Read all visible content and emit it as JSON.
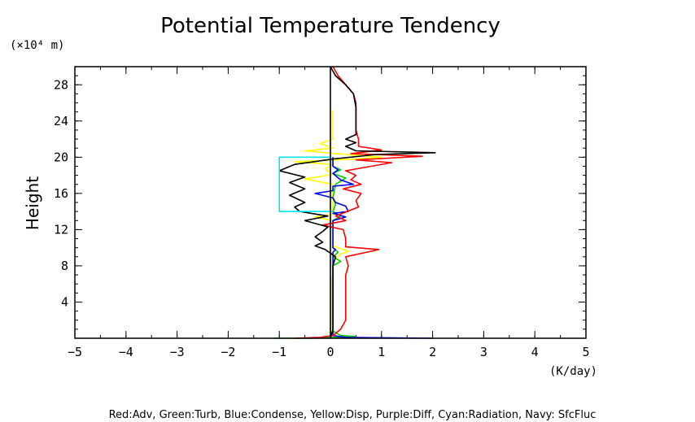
{
  "chart_data": {
    "type": "line",
    "title": "Potential Temperature Tendency",
    "xlabel": "(K/day)",
    "ylabel": "Height",
    "yunit": "(×10⁴ m)",
    "xlim": [
      -5,
      5
    ],
    "ylim": [
      0,
      30
    ],
    "xticks": [
      -5,
      -4,
      -3,
      -2,
      -1,
      0,
      1,
      2,
      3,
      4,
      5
    ],
    "yticks": [
      4,
      8,
      12,
      16,
      20,
      24,
      28
    ],
    "xminor_step": 0.5,
    "yminor_step": 1,
    "grid": false,
    "legend_text": "Red:Adv, Green:Turb, Blue:Condense, Yellow:Disp, Purple:Diff, Cyan:Radiation, Navy: SfcFluc",
    "series": [
      {
        "color": "#ffff00",
        "points": [
          [
            0.0,
            0.0
          ],
          [
            0.02,
            2
          ],
          [
            0.02,
            4
          ],
          [
            0.02,
            6
          ],
          [
            0.05,
            7.5
          ],
          [
            0.05,
            8.5
          ],
          [
            0.2,
            9.3
          ],
          [
            0.35,
            9.6
          ],
          [
            0.2,
            9.9
          ],
          [
            0.05,
            10.2
          ],
          [
            0.05,
            11
          ],
          [
            0.05,
            12
          ],
          [
            0.05,
            13
          ],
          [
            -0.3,
            13.4
          ],
          [
            0.05,
            13.7
          ],
          [
            0.05,
            14.2
          ],
          [
            0.05,
            16
          ],
          [
            0.05,
            17
          ],
          [
            -0.5,
            17.6
          ],
          [
            0.05,
            18.1
          ],
          [
            -0.1,
            18.7
          ],
          [
            0.05,
            19.2
          ],
          [
            -0.7,
            19.5
          ],
          [
            0.5,
            19.8
          ],
          [
            1.0,
            20.0
          ],
          [
            0.3,
            20.3
          ],
          [
            -0.5,
            20.7
          ],
          [
            0.05,
            21.0
          ],
          [
            -0.2,
            21.5
          ],
          [
            0.05,
            22.0
          ],
          [
            0.05,
            23.5
          ],
          [
            0.05,
            25.2
          ]
        ]
      },
      {
        "color": "#00cc00",
        "points": [
          [
            -1.1,
            0.0
          ],
          [
            -0.4,
            0.0
          ],
          [
            0.05,
            0.1
          ],
          [
            0.5,
            0.2
          ],
          [
            0.2,
            0.3
          ],
          [
            0.05,
            0.8
          ],
          [
            0.05,
            2
          ],
          [
            0.05,
            4
          ],
          [
            0.05,
            6
          ],
          [
            0.05,
            8
          ],
          [
            0.2,
            8.5
          ],
          [
            0.05,
            9.0
          ],
          [
            0.15,
            9.5
          ],
          [
            0.05,
            10.0
          ],
          [
            0.05,
            12
          ],
          [
            0.05,
            13
          ],
          [
            0.2,
            13.5
          ],
          [
            0.05,
            14.0
          ],
          [
            0.1,
            14.8
          ],
          [
            0.05,
            15.5
          ],
          [
            0.1,
            17
          ],
          [
            0.3,
            17.7
          ],
          [
            0.05,
            18.2
          ],
          [
            0.2,
            18.6
          ],
          [
            0.05,
            19.0
          ],
          [
            0.05,
            20
          ]
        ]
      },
      {
        "color": "#0000ff",
        "points": [
          [
            2.0,
            0.0
          ],
          [
            0.3,
            0.1
          ],
          [
            0.05,
            0.3
          ],
          [
            0.05,
            2
          ],
          [
            0.05,
            5
          ],
          [
            0.05,
            8
          ],
          [
            0.05,
            9.5
          ],
          [
            0.1,
            9.8
          ],
          [
            0.05,
            10
          ],
          [
            0.05,
            12
          ],
          [
            0.05,
            13.0
          ],
          [
            0.3,
            13.4
          ],
          [
            0.05,
            13.8
          ],
          [
            0.35,
            14.0
          ],
          [
            0.3,
            14.6
          ],
          [
            0.1,
            15.0
          ],
          [
            0.05,
            15.5
          ],
          [
            -0.3,
            16.0
          ],
          [
            0.05,
            16.3
          ],
          [
            0.05,
            16.8
          ],
          [
            0.45,
            17.0
          ],
          [
            0.2,
            17.5
          ],
          [
            0.05,
            18.2
          ],
          [
            0.15,
            18.6
          ],
          [
            0.05,
            19.0
          ],
          [
            0.05,
            20.0
          ]
        ]
      },
      {
        "color": "#ff0000",
        "points": [
          [
            -0.7,
            0.0
          ],
          [
            -0.2,
            0.1
          ],
          [
            0.05,
            0.3
          ],
          [
            0.2,
            1
          ],
          [
            0.3,
            2
          ],
          [
            0.3,
            3
          ],
          [
            0.3,
            4
          ],
          [
            0.3,
            5
          ],
          [
            0.3,
            6
          ],
          [
            0.3,
            7
          ],
          [
            0.35,
            8
          ],
          [
            0.3,
            9
          ],
          [
            0.95,
            9.8
          ],
          [
            0.3,
            10.1
          ],
          [
            0.3,
            11
          ],
          [
            0.25,
            12.0
          ],
          [
            -0.15,
            12.5
          ],
          [
            0.3,
            13
          ],
          [
            0.1,
            13.5
          ],
          [
            0.55,
            14.5
          ],
          [
            0.5,
            15.2
          ],
          [
            0.6,
            16.0
          ],
          [
            0.25,
            16.5
          ],
          [
            0.6,
            17.0
          ],
          [
            0.4,
            17.5
          ],
          [
            0.5,
            18.0
          ],
          [
            0.3,
            18.5
          ],
          [
            1.2,
            19.4
          ],
          [
            0.5,
            19.7
          ],
          [
            1.8,
            20.1
          ],
          [
            0.4,
            20.4
          ],
          [
            1.0,
            20.8
          ],
          [
            0.55,
            21.2
          ],
          [
            0.55,
            22.0
          ],
          [
            0.5,
            23
          ],
          [
            0.5,
            24
          ],
          [
            0.5,
            25
          ],
          [
            0.5,
            26
          ],
          [
            0.45,
            27
          ],
          [
            0.3,
            28
          ],
          [
            0.15,
            29
          ],
          [
            0.05,
            30
          ]
        ]
      },
      {
        "color": "#000000",
        "points": [
          [
            0.0,
            0.0
          ],
          [
            0.05,
            1
          ],
          [
            0.05,
            3
          ],
          [
            0.05,
            6
          ],
          [
            0.05,
            8
          ],
          [
            0.1,
            9.0
          ],
          [
            -0.1,
            9.8
          ],
          [
            -0.3,
            10.2
          ],
          [
            -0.15,
            10.6
          ],
          [
            -0.3,
            11.2
          ],
          [
            -0.15,
            11.8
          ],
          [
            -0.05,
            12.3
          ],
          [
            -0.5,
            13.0
          ],
          [
            -0.05,
            13.5
          ],
          [
            -0.6,
            14.0
          ],
          [
            -0.7,
            14.5
          ],
          [
            -0.5,
            15.0
          ],
          [
            -0.8,
            15.8
          ],
          [
            -0.5,
            16.5
          ],
          [
            -0.8,
            17.2
          ],
          [
            -0.5,
            17.8
          ],
          [
            -1.0,
            18.5
          ],
          [
            -0.7,
            19.2
          ],
          [
            0.05,
            19.8
          ],
          [
            0.9,
            20.3
          ],
          [
            2.05,
            20.5
          ],
          [
            0.5,
            20.7
          ],
          [
            0.3,
            21.2
          ],
          [
            0.5,
            21.6
          ],
          [
            0.3,
            22.0
          ],
          [
            0.5,
            22.5
          ],
          [
            0.5,
            24
          ],
          [
            0.5,
            25.5
          ],
          [
            0.45,
            27
          ],
          [
            0.3,
            28
          ],
          [
            0.1,
            29
          ],
          [
            0.0,
            30
          ]
        ]
      },
      {
        "color": "#00e5ee",
        "points": [
          [
            0.0,
            20.0
          ],
          [
            -1.0,
            20.0
          ],
          [
            -1.0,
            14.0
          ],
          [
            0.05,
            14.0
          ]
        ]
      }
    ],
    "zero_line": {
      "color": "#000000",
      "x": 0
    }
  }
}
